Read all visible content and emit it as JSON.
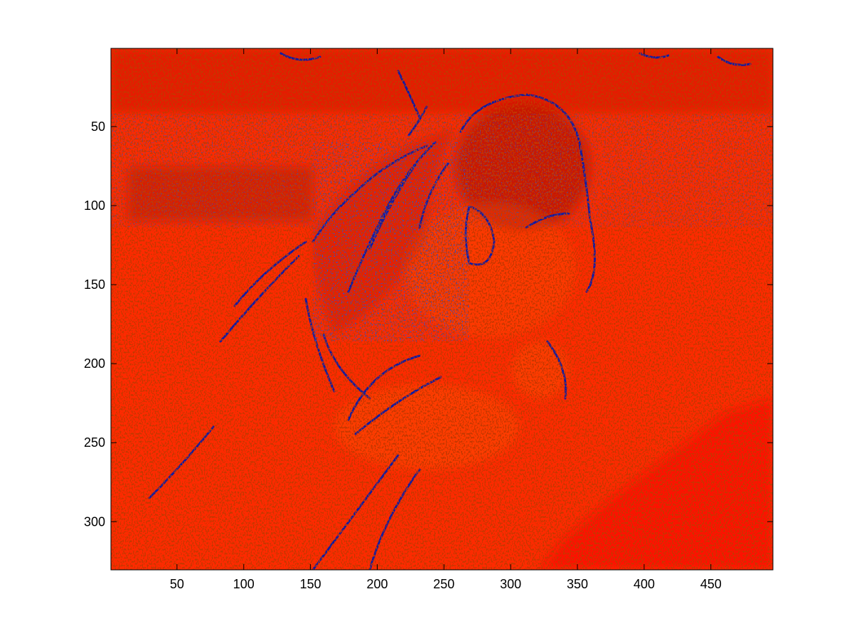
{
  "chart_data": {
    "type": "heatmap",
    "title": "",
    "xlabel": "",
    "ylabel": "",
    "xlim": [
      0.5,
      496.5
    ],
    "ylim": [
      0.5,
      330.5
    ],
    "y_direction": "reverse",
    "x_ticks": [
      50,
      100,
      150,
      200,
      250,
      300,
      350,
      400,
      450
    ],
    "y_ticks": [
      50,
      100,
      150,
      200,
      250,
      300
    ],
    "x_tick_labels": [
      "50",
      "100",
      "150",
      "200",
      "250",
      "300",
      "350",
      "400",
      "450"
    ],
    "y_tick_labels": [
      "50",
      "100",
      "150",
      "200",
      "250",
      "300"
    ],
    "grid": false,
    "legend": "none",
    "colors": {
      "base": "#ff2a00",
      "dark": "#b80c00",
      "bright": "#ff0a00",
      "highlight": "#ff4a00",
      "blue": "#0a1aa8"
    }
  }
}
